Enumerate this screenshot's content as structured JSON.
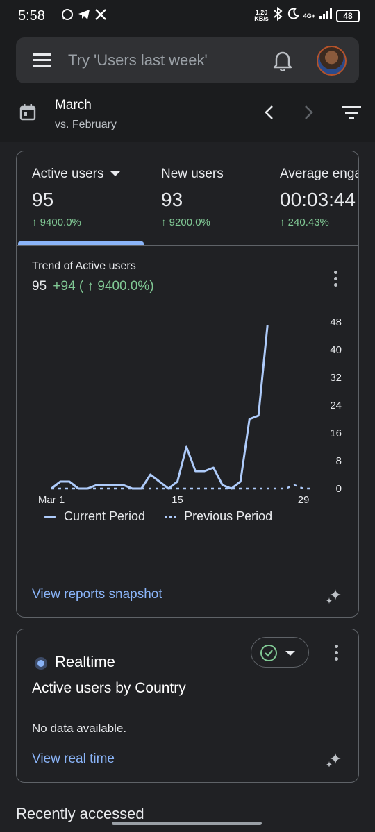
{
  "status_bar": {
    "time": "5:58",
    "net_speed_value": "1.20",
    "net_speed_unit": "KB/s",
    "network": "4G+",
    "battery": "48",
    "app_icons": [
      "whatsapp-icon",
      "telegram-icon",
      "x-icon"
    ]
  },
  "search": {
    "placeholder": "Try 'Users last week'"
  },
  "date_range": {
    "label": "March",
    "comparison": "vs. February"
  },
  "metrics": [
    {
      "label": "Active users",
      "value": "95",
      "change": "↑ 9400.0%"
    },
    {
      "label": "New users",
      "value": "93",
      "change": "↑ 9200.0%"
    },
    {
      "label": "Average engagement time",
      "value": "00:03:44",
      "change": "↑ 240.43%"
    }
  ],
  "trend": {
    "title": "Trend of Active users",
    "value": "95",
    "delta": "+94 ( ↑ 9400.0%)"
  },
  "chart_data": {
    "type": "line",
    "x_tick_labels": [
      "Mar 1",
      "15",
      "29"
    ],
    "x": [
      1,
      2,
      3,
      4,
      5,
      6,
      7,
      8,
      9,
      10,
      11,
      12,
      13,
      14,
      15,
      16,
      17,
      18,
      19,
      20,
      21,
      22,
      23,
      24,
      25,
      26,
      27,
      28,
      29,
      30
    ],
    "series": [
      {
        "name": "Current Period",
        "style": "solid",
        "color": "#aecbfa",
        "values": [
          0,
          2,
          2,
          0,
          0,
          1,
          1,
          1,
          1,
          0,
          0,
          4,
          2,
          0,
          2,
          12,
          5,
          5,
          6,
          1,
          0,
          2,
          20,
          21,
          47,
          null,
          null,
          null,
          null,
          null
        ]
      },
      {
        "name": "Previous Period",
        "style": "dashed",
        "color": "#aecbfa",
        "values": [
          0,
          0,
          0,
          0,
          0,
          0,
          0,
          0,
          0,
          0,
          0,
          0,
          0,
          0,
          0,
          0,
          0,
          0,
          0,
          0,
          0,
          0,
          0,
          0,
          0,
          0,
          0,
          1,
          0,
          0
        ]
      }
    ],
    "y_ticks": [
      0,
      8,
      16,
      24,
      32,
      40,
      48
    ],
    "ylim": [
      0,
      48
    ],
    "y_axis_side": "right",
    "grid": false,
    "legend_position": "bottom"
  },
  "links": {
    "reports_snapshot": "View reports snapshot",
    "real_time": "View real time"
  },
  "realtime": {
    "title": "Realtime",
    "subtitle": "Active users by Country",
    "empty_text": "No data available."
  },
  "recent_heading": "Recently accessed",
  "colors": {
    "accent": "#8ab4f8",
    "positive": "#81c995",
    "background": "#202124",
    "surface": "#303134"
  }
}
